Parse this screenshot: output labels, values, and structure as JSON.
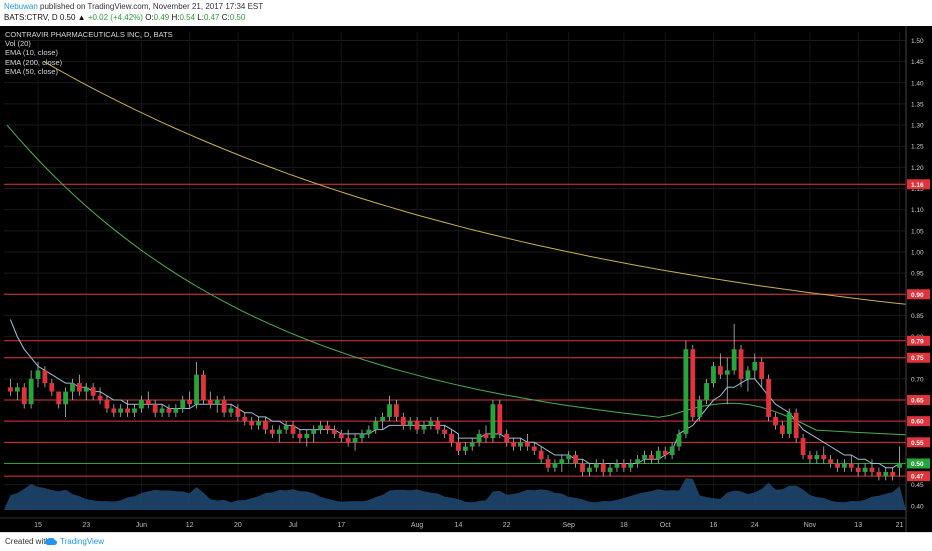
{
  "header": {
    "author": "Nebuwan",
    "published_text": " published on TradingView.com, November 21, 2017 17:34 EST",
    "symbol_line": "BATS:CTRV, D  0.50 ▲",
    "change": "+0.02 (+4.42%)",
    "o_label": " O:",
    "o_value": "0.49",
    "h_label": " H:",
    "h_value": "0.54",
    "l_label": " L:",
    "l_value": "0.47",
    "c_label": " C:",
    "c_value": "0.50"
  },
  "legend": {
    "title": "CONTRAVIR PHARMACEUTICALS INC, D, BATS",
    "items": [
      "Vol (20)",
      "EMA (10, close)",
      "EMA (200, close)",
      "EMA (50, close)"
    ]
  },
  "footer": {
    "created_with": "Created with",
    "brand": "TradingView",
    "icon": "cloud-icon"
  },
  "colors": {
    "background": "#000000",
    "up": "#27a53a",
    "down": "#e0333c",
    "ema10": "#9bbfd9",
    "ema50": "#4caf50",
    "ema200": "#c8b04b",
    "level_line": "#e0333c",
    "volume": "#1e4a73"
  },
  "chart_data": {
    "type": "candlestick",
    "title": "CONTRAVIR PHARMACEUTICALS INC, D, BATS",
    "symbol": "BATS:CTRV",
    "y_ticks": [
      1.5,
      1.45,
      1.4,
      1.35,
      1.3,
      1.25,
      1.2,
      1.15,
      1.1,
      1.05,
      1.0,
      0.95,
      0.9,
      0.85,
      0.8,
      0.75,
      0.7,
      0.65,
      0.6,
      0.55,
      0.5,
      0.45,
      0.4
    ],
    "ylim": [
      0.39,
      1.52
    ],
    "x_labels": [
      "15",
      "23",
      "Jun",
      "12",
      "20",
      "Jul",
      "17",
      "Aug",
      "14",
      "22",
      "Sep",
      "18",
      "Oct",
      "16",
      "24",
      "Nov",
      "13",
      "21"
    ],
    "horizontal_levels": [
      1.16,
      0.9,
      0.79,
      0.75,
      0.65,
      0.6,
      0.55,
      0.5,
      0.47
    ],
    "price_tags": [
      {
        "label": "1.16",
        "value": 1.16,
        "color": "#e0333c"
      },
      {
        "label": "0.90",
        "value": 0.9,
        "color": "#e0333c"
      },
      {
        "label": "0.79",
        "value": 0.79,
        "color": "#e0333c"
      },
      {
        "label": "0.75",
        "value": 0.75,
        "color": "#e0333c"
      },
      {
        "label": "0.65",
        "value": 0.65,
        "color": "#e0333c"
      },
      {
        "label": "0.60",
        "value": 0.6,
        "color": "#e0333c"
      },
      {
        "label": "0.55",
        "value": 0.55,
        "color": "#e0333c"
      },
      {
        "label": "0.50",
        "value": 0.5,
        "color": "#27a53a"
      },
      {
        "label": "0.47",
        "value": 0.47,
        "color": "#e0333c"
      }
    ],
    "candles": [
      [
        0.68,
        0.7,
        0.66,
        0.67
      ],
      [
        0.67,
        0.69,
        0.65,
        0.68
      ],
      [
        0.68,
        0.69,
        0.63,
        0.64
      ],
      [
        0.64,
        0.72,
        0.63,
        0.7
      ],
      [
        0.7,
        0.74,
        0.68,
        0.72
      ],
      [
        0.72,
        0.73,
        0.68,
        0.69
      ],
      [
        0.69,
        0.7,
        0.66,
        0.67
      ],
      [
        0.67,
        0.67,
        0.63,
        0.64
      ],
      [
        0.64,
        0.68,
        0.61,
        0.67
      ],
      [
        0.67,
        0.7,
        0.65,
        0.69
      ],
      [
        0.69,
        0.71,
        0.66,
        0.67
      ],
      [
        0.67,
        0.69,
        0.65,
        0.68
      ],
      [
        0.68,
        0.69,
        0.65,
        0.66
      ],
      [
        0.66,
        0.68,
        0.64,
        0.65
      ],
      [
        0.65,
        0.66,
        0.62,
        0.63
      ],
      [
        0.63,
        0.64,
        0.61,
        0.62
      ],
      [
        0.62,
        0.64,
        0.61,
        0.63
      ],
      [
        0.63,
        0.65,
        0.61,
        0.62
      ],
      [
        0.62,
        0.64,
        0.61,
        0.63
      ],
      [
        0.63,
        0.66,
        0.62,
        0.65
      ],
      [
        0.65,
        0.67,
        0.63,
        0.64
      ],
      [
        0.64,
        0.65,
        0.61,
        0.62
      ],
      [
        0.62,
        0.64,
        0.61,
        0.63
      ],
      [
        0.63,
        0.64,
        0.61,
        0.62
      ],
      [
        0.62,
        0.64,
        0.61,
        0.63
      ],
      [
        0.63,
        0.66,
        0.62,
        0.65
      ],
      [
        0.65,
        0.67,
        0.63,
        0.64
      ],
      [
        0.64,
        0.74,
        0.63,
        0.71
      ],
      [
        0.71,
        0.72,
        0.64,
        0.65
      ],
      [
        0.65,
        0.67,
        0.63,
        0.64
      ],
      [
        0.64,
        0.66,
        0.62,
        0.65
      ],
      [
        0.65,
        0.66,
        0.61,
        0.62
      ],
      [
        0.62,
        0.64,
        0.61,
        0.63
      ],
      [
        0.63,
        0.64,
        0.6,
        0.61
      ],
      [
        0.61,
        0.62,
        0.59,
        0.6
      ],
      [
        0.6,
        0.61,
        0.58,
        0.59
      ],
      [
        0.59,
        0.61,
        0.58,
        0.6
      ],
      [
        0.6,
        0.61,
        0.57,
        0.58
      ],
      [
        0.58,
        0.59,
        0.56,
        0.57
      ],
      [
        0.57,
        0.59,
        0.55,
        0.58
      ],
      [
        0.58,
        0.6,
        0.57,
        0.59
      ],
      [
        0.59,
        0.6,
        0.56,
        0.57
      ],
      [
        0.57,
        0.58,
        0.55,
        0.56
      ],
      [
        0.56,
        0.58,
        0.54,
        0.57
      ],
      [
        0.57,
        0.59,
        0.55,
        0.58
      ],
      [
        0.58,
        0.6,
        0.57,
        0.59
      ],
      [
        0.59,
        0.6,
        0.57,
        0.58
      ],
      [
        0.58,
        0.59,
        0.56,
        0.57
      ],
      [
        0.57,
        0.58,
        0.55,
        0.56
      ],
      [
        0.56,
        0.58,
        0.54,
        0.55
      ],
      [
        0.55,
        0.57,
        0.53,
        0.56
      ],
      [
        0.56,
        0.58,
        0.55,
        0.57
      ],
      [
        0.57,
        0.59,
        0.56,
        0.58
      ],
      [
        0.58,
        0.61,
        0.57,
        0.6
      ],
      [
        0.6,
        0.62,
        0.58,
        0.61
      ],
      [
        0.61,
        0.66,
        0.6,
        0.64
      ],
      [
        0.64,
        0.65,
        0.6,
        0.61
      ],
      [
        0.61,
        0.62,
        0.58,
        0.59
      ],
      [
        0.59,
        0.61,
        0.58,
        0.6
      ],
      [
        0.6,
        0.61,
        0.57,
        0.58
      ],
      [
        0.58,
        0.6,
        0.57,
        0.59
      ],
      [
        0.59,
        0.61,
        0.58,
        0.6
      ],
      [
        0.6,
        0.61,
        0.57,
        0.58
      ],
      [
        0.58,
        0.59,
        0.56,
        0.57
      ],
      [
        0.57,
        0.58,
        0.54,
        0.55
      ],
      [
        0.55,
        0.56,
        0.52,
        0.53
      ],
      [
        0.53,
        0.55,
        0.52,
        0.54
      ],
      [
        0.54,
        0.56,
        0.53,
        0.55
      ],
      [
        0.55,
        0.58,
        0.54,
        0.57
      ],
      [
        0.57,
        0.59,
        0.55,
        0.56
      ],
      [
        0.56,
        0.65,
        0.55,
        0.64
      ],
      [
        0.64,
        0.65,
        0.56,
        0.57
      ],
      [
        0.57,
        0.58,
        0.54,
        0.55
      ],
      [
        0.55,
        0.56,
        0.53,
        0.54
      ],
      [
        0.54,
        0.56,
        0.53,
        0.55
      ],
      [
        0.55,
        0.57,
        0.53,
        0.54
      ],
      [
        0.54,
        0.55,
        0.52,
        0.53
      ],
      [
        0.53,
        0.54,
        0.5,
        0.51
      ],
      [
        0.51,
        0.52,
        0.48,
        0.49
      ],
      [
        0.49,
        0.51,
        0.48,
        0.5
      ],
      [
        0.5,
        0.52,
        0.48,
        0.51
      ],
      [
        0.51,
        0.53,
        0.5,
        0.52
      ],
      [
        0.52,
        0.53,
        0.49,
        0.5
      ],
      [
        0.5,
        0.51,
        0.47,
        0.48
      ],
      [
        0.48,
        0.5,
        0.47,
        0.49
      ],
      [
        0.49,
        0.51,
        0.48,
        0.5
      ],
      [
        0.5,
        0.51,
        0.47,
        0.48
      ],
      [
        0.48,
        0.5,
        0.47,
        0.49
      ],
      [
        0.49,
        0.51,
        0.48,
        0.5
      ],
      [
        0.5,
        0.51,
        0.48,
        0.49
      ],
      [
        0.49,
        0.51,
        0.48,
        0.5
      ],
      [
        0.5,
        0.52,
        0.49,
        0.51
      ],
      [
        0.51,
        0.53,
        0.5,
        0.52
      ],
      [
        0.52,
        0.53,
        0.5,
        0.51
      ],
      [
        0.51,
        0.54,
        0.5,
        0.53
      ],
      [
        0.53,
        0.54,
        0.51,
        0.52
      ],
      [
        0.52,
        0.55,
        0.51,
        0.54
      ],
      [
        0.54,
        0.58,
        0.53,
        0.57
      ],
      [
        0.57,
        0.79,
        0.56,
        0.77
      ],
      [
        0.77,
        0.78,
        0.6,
        0.61
      ],
      [
        0.61,
        0.66,
        0.6,
        0.65
      ],
      [
        0.65,
        0.7,
        0.64,
        0.69
      ],
      [
        0.69,
        0.74,
        0.68,
        0.73
      ],
      [
        0.73,
        0.76,
        0.7,
        0.71
      ],
      [
        0.71,
        0.75,
        0.64,
        0.72
      ],
      [
        0.72,
        0.83,
        0.71,
        0.77
      ],
      [
        0.77,
        0.78,
        0.68,
        0.7
      ],
      [
        0.7,
        0.73,
        0.67,
        0.72
      ],
      [
        0.72,
        0.76,
        0.7,
        0.74
      ],
      [
        0.74,
        0.75,
        0.68,
        0.7
      ],
      [
        0.7,
        0.71,
        0.6,
        0.61
      ],
      [
        0.61,
        0.62,
        0.58,
        0.59
      ],
      [
        0.59,
        0.6,
        0.56,
        0.57
      ],
      [
        0.57,
        0.63,
        0.56,
        0.62
      ],
      [
        0.62,
        0.63,
        0.55,
        0.56
      ],
      [
        0.56,
        0.57,
        0.51,
        0.52
      ],
      [
        0.52,
        0.53,
        0.5,
        0.51
      ],
      [
        0.51,
        0.53,
        0.5,
        0.52
      ],
      [
        0.52,
        0.54,
        0.5,
        0.51
      ],
      [
        0.51,
        0.52,
        0.49,
        0.5
      ],
      [
        0.5,
        0.51,
        0.48,
        0.49
      ],
      [
        0.49,
        0.51,
        0.48,
        0.5
      ],
      [
        0.5,
        0.52,
        0.48,
        0.49
      ],
      [
        0.49,
        0.5,
        0.47,
        0.48
      ],
      [
        0.48,
        0.5,
        0.47,
        0.49
      ],
      [
        0.49,
        0.51,
        0.47,
        0.48
      ],
      [
        0.48,
        0.49,
        0.46,
        0.47
      ],
      [
        0.47,
        0.49,
        0.46,
        0.48
      ],
      [
        0.48,
        0.49,
        0.46,
        0.47
      ],
      [
        0.49,
        0.54,
        0.47,
        0.5
      ]
    ],
    "ema10": [
      0.84,
      0.8,
      0.77,
      0.75,
      0.73,
      0.72,
      0.71,
      0.7,
      0.69,
      0.69,
      0.68,
      0.68,
      0.67,
      0.67,
      0.66,
      0.65,
      0.65,
      0.64,
      0.64,
      0.64,
      0.64,
      0.64,
      0.64,
      0.63,
      0.63,
      0.63,
      0.63,
      0.64,
      0.64,
      0.64,
      0.64,
      0.64,
      0.64,
      0.63,
      0.62,
      0.62,
      0.61,
      0.61,
      0.6,
      0.6,
      0.59,
      0.59,
      0.58,
      0.58,
      0.58,
      0.58,
      0.58,
      0.58,
      0.57,
      0.57,
      0.57,
      0.57,
      0.57,
      0.58,
      0.58,
      0.59,
      0.59,
      0.59,
      0.59,
      0.59,
      0.59,
      0.59,
      0.59,
      0.59,
      0.58,
      0.57,
      0.56,
      0.56,
      0.56,
      0.56,
      0.57,
      0.57,
      0.57,
      0.56,
      0.56,
      0.56,
      0.55,
      0.55,
      0.54,
      0.53,
      0.52,
      0.52,
      0.52,
      0.51,
      0.51,
      0.5,
      0.5,
      0.5,
      0.5,
      0.5,
      0.5,
      0.5,
      0.5,
      0.51,
      0.51,
      0.51,
      0.52,
      0.53,
      0.57,
      0.58,
      0.59,
      0.61,
      0.63,
      0.65,
      0.66,
      0.68,
      0.68,
      0.69,
      0.7,
      0.7,
      0.68,
      0.66,
      0.64,
      0.63,
      0.62,
      0.6,
      0.58,
      0.57,
      0.56,
      0.55,
      0.54,
      0.53,
      0.52,
      0.52,
      0.51,
      0.51,
      0.5,
      0.5,
      0.49,
      0.49,
      0.5
    ],
    "ema50_start": 1.3,
    "ema50_end": 0.55,
    "ema200_start": 1.45,
    "ema200_end": 0.79
  }
}
